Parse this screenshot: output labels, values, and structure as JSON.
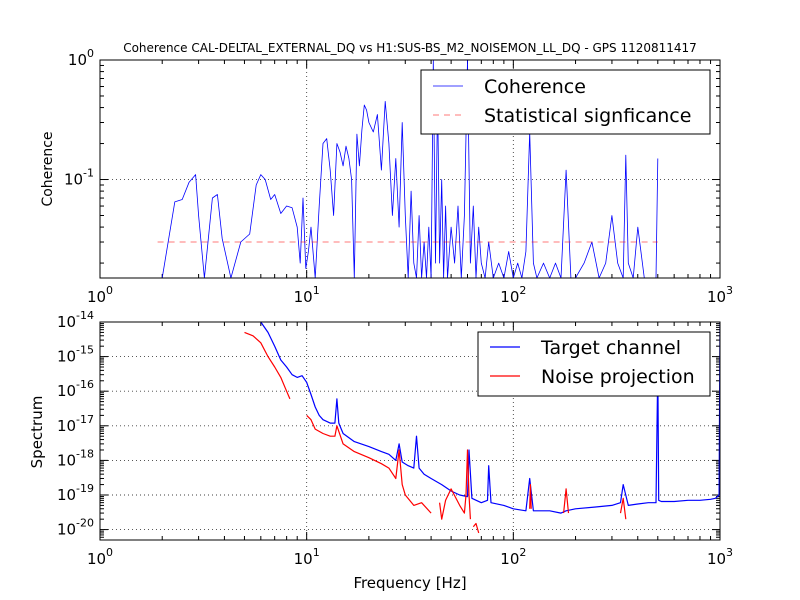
{
  "chart_data": [
    {
      "type": "line",
      "title": "Coherence CAL-DELTAL_EXTERNAL_DQ vs H1:SUS-BS_M2_NOISEMON_LL_DQ - GPS 1120811417",
      "xlabel": "",
      "ylabel": "Coherence",
      "xscale": "log",
      "yscale": "log",
      "xlim": [
        1,
        1000
      ],
      "ylim": [
        0.015,
        1
      ],
      "xticks": [
        {
          "value": 1,
          "base": "10",
          "exp": "0"
        },
        {
          "value": 10,
          "base": "10",
          "exp": "1"
        },
        {
          "value": 100,
          "base": "10",
          "exp": "2"
        },
        {
          "value": 1000,
          "base": "10",
          "exp": "3"
        }
      ],
      "yticks": [
        {
          "value": 0.1,
          "base": "10",
          "exp": "-1"
        },
        {
          "value": 1,
          "base": "10",
          "exp": "0"
        }
      ],
      "grid": true,
      "legend": "top-right",
      "series": [
        {
          "name": "Coherence",
          "color": "#0000ff",
          "style": "solid",
          "x": [
            2,
            2.3,
            2.5,
            2.7,
            2.9,
            3.0,
            3.2,
            3.5,
            3.7,
            3.9,
            4.3,
            4.8,
            5.3,
            5.7,
            6.0,
            6.3,
            6.7,
            7.0,
            7.5,
            8.0,
            8.5,
            9.0,
            9.3,
            9.6,
            9.9,
            10.2,
            10.5,
            11.0,
            11.5,
            12.0,
            12.5,
            13.0,
            13.5,
            14.0,
            14.5,
            15.0,
            15.5,
            16.0,
            16.5,
            17.0,
            17.5,
            18.0,
            18.5,
            19.0,
            19.5,
            20.0,
            21.0,
            22.0,
            23.0,
            24.0,
            25.0,
            26.0,
            27.0,
            28.0,
            29.0,
            30.0,
            31.0,
            32.0,
            33.0,
            34.0,
            35.0,
            36.0,
            37.0,
            38.0,
            39.0,
            40.0,
            41.0,
            42.0,
            43.0,
            44.0,
            45.0,
            46.0,
            47.0,
            48.0,
            50.0,
            52.0,
            54.0,
            56.0,
            58.0,
            60.0,
            62.0,
            64.0,
            66.0,
            68.0,
            70.0,
            73.0,
            76.0,
            80.0,
            85.0,
            90.0,
            95.0,
            100.0,
            105.0,
            110.0,
            115.0,
            120.0,
            125.0,
            130.0,
            140.0,
            150.0,
            160.0,
            170.0,
            180.0,
            190.0,
            200.0,
            220.0,
            240.0,
            260.0,
            280.0,
            300.0,
            320.0,
            340.0,
            350.0,
            360.0,
            380.0,
            400.0,
            430.0,
            460.0,
            490.0,
            500.0
          ],
          "values": [
            0.015,
            0.065,
            0.068,
            0.095,
            0.11,
            0.05,
            0.015,
            0.07,
            0.075,
            0.032,
            0.015,
            0.03,
            0.035,
            0.09,
            0.11,
            0.1,
            0.068,
            0.075,
            0.052,
            0.06,
            0.058,
            0.04,
            0.02,
            0.07,
            0.018,
            0.025,
            0.04,
            0.015,
            0.06,
            0.2,
            0.22,
            0.12,
            0.05,
            0.2,
            0.17,
            0.13,
            0.19,
            0.15,
            0.1,
            0.015,
            0.24,
            0.13,
            0.26,
            0.42,
            0.38,
            0.3,
            0.25,
            0.35,
            0.12,
            0.45,
            0.2,
            0.05,
            0.15,
            0.04,
            0.3,
            0.05,
            0.015,
            0.08,
            0.02,
            0.015,
            0.05,
            0.015,
            0.03,
            0.015,
            0.04,
            0.015,
            1.0,
            0.02,
            0.5,
            0.02,
            0.1,
            0.015,
            0.06,
            0.015,
            0.04,
            0.02,
            0.06,
            0.015,
            0.05,
            1.0,
            0.02,
            0.06,
            0.015,
            0.04,
            0.02,
            0.015,
            0.03,
            0.015,
            0.02,
            0.015,
            0.025,
            0.015,
            0.02,
            0.015,
            0.025,
            0.25,
            0.02,
            0.015,
            0.02,
            0.015,
            0.02,
            0.015,
            0.12,
            0.015,
            0.015,
            0.02,
            0.03,
            0.015,
            0.02,
            0.05,
            0.02,
            0.015,
            0.16,
            0.02,
            0.015,
            0.04,
            0.015,
            0.015,
            0.015,
            0.15
          ]
        },
        {
          "name": "Statistical signficance",
          "color": "#ff0000",
          "style": "dashed",
          "x": [
            1.9,
            500
          ],
          "values": [
            0.03,
            0.03
          ]
        }
      ]
    },
    {
      "type": "line",
      "title": "",
      "xlabel": "Frequency [Hz]",
      "ylabel": "Spectrum",
      "xscale": "log",
      "yscale": "log",
      "xlim": [
        1,
        1000
      ],
      "ylim": [
        5e-21,
        1e-14
      ],
      "xticks": [
        {
          "value": 1,
          "base": "10",
          "exp": "0"
        },
        {
          "value": 10,
          "base": "10",
          "exp": "1"
        },
        {
          "value": 100,
          "base": "10",
          "exp": "2"
        },
        {
          "value": 1000,
          "base": "10",
          "exp": "3"
        }
      ],
      "yticks": [
        {
          "value": 1e-20,
          "base": "10",
          "exp": "-20"
        },
        {
          "value": 1e-19,
          "base": "10",
          "exp": "-19"
        },
        {
          "value": 1e-18,
          "base": "10",
          "exp": "-18"
        },
        {
          "value": 1e-17,
          "base": "10",
          "exp": "-17"
        },
        {
          "value": 1e-16,
          "base": "10",
          "exp": "-16"
        },
        {
          "value": 1e-15,
          "base": "10",
          "exp": "-15"
        },
        {
          "value": 1e-14,
          "base": "10",
          "exp": "-14"
        }
      ],
      "grid": true,
      "legend": "top-right",
      "series": [
        {
          "name": "Target channel",
          "color": "#0000ff",
          "style": "solid",
          "x": [
            6.0,
            6.5,
            7.0,
            7.5,
            8.0,
            8.5,
            9.0,
            9.5,
            10.0,
            10.5,
            11.0,
            11.5,
            12.0,
            13.0,
            13.7,
            14.0,
            14.3,
            15.0,
            17.0,
            20.0,
            23.0,
            25.0,
            27.0,
            28.0,
            29.0,
            31.0,
            33.0,
            34.0,
            35.0,
            37.0,
            40.0,
            45.0,
            50.0,
            55.0,
            60.0,
            61.0,
            63.0,
            70.0,
            75.0,
            76.0,
            78.0,
            90.0,
            100.0,
            115.0,
            120.0,
            125.0,
            150.0,
            170.0,
            180.0,
            200.0,
            250.0,
            300.0,
            330.0,
            340.0,
            360.0,
            400.0,
            450.0,
            490.0,
            500.0,
            505.0,
            520.0,
            600.0,
            700.0,
            800.0,
            900.0,
            950.0,
            990.0,
            1000.0
          ],
          "values": [
            1e-14,
            5e-15,
            2e-15,
            8e-16,
            5e-16,
            3e-16,
            2.5e-16,
            2.8e-16,
            1.8e-16,
            8e-17,
            3.5e-17,
            2e-17,
            1.5e-17,
            1.2e-17,
            1.2e-17,
            6e-17,
            1.2e-17,
            6e-18,
            3.5e-18,
            2.5e-18,
            1.8e-18,
            1.5e-18,
            1e-18,
            3e-18,
            9e-19,
            7e-19,
            6e-19,
            5e-18,
            6e-19,
            4e-19,
            3e-19,
            2e-19,
            1.3e-19,
            1e-19,
            9e-20,
            2e-18,
            8e-20,
            6e-20,
            7e-20,
            7e-19,
            6e-20,
            5e-20,
            4e-20,
            3.5e-20,
            3e-19,
            3.5e-20,
            3.5e-20,
            3e-20,
            3.5e-20,
            4e-20,
            4.5e-20,
            5e-20,
            6e-20,
            2e-19,
            5e-20,
            5.5e-20,
            6e-20,
            6e-20,
            5e-16,
            7e-20,
            6.5e-20,
            6.5e-20,
            7e-20,
            7e-20,
            7.5e-20,
            8e-20,
            1e-19,
            1e-14
          ]
        },
        {
          "name": "Noise projection",
          "color": "#ff0000",
          "style": "solid",
          "x": [
            5.0,
            5.5,
            6.0,
            6.5,
            7.0,
            7.5,
            8.0,
            8.3,
            null,
            10.0,
            10.5,
            11.0,
            12.0,
            13.0,
            13.7,
            14.0,
            15.0,
            17.0,
            20.0,
            23.0,
            25.0,
            27.0,
            28.0,
            29.0,
            30.0,
            33.0,
            36.0,
            40.0,
            null,
            44.0,
            45.0,
            47.0,
            50.0,
            55.0,
            58.0,
            59.0,
            60.0,
            61.0,
            62.0,
            null,
            64.0,
            66.0,
            68.0,
            null,
            120.0,
            121.0,
            122.0,
            null,
            175.0,
            180.0,
            185.0,
            null,
            330.0,
            340.0,
            350.0
          ],
          "values": [
            5e-15,
            4e-15,
            2.5e-15,
            1e-15,
            5e-16,
            2.5e-16,
            1e-16,
            6e-17,
            null,
            2e-17,
            1.5e-17,
            8e-18,
            6e-18,
            5e-18,
            5e-18,
            1e-17,
            3e-18,
            1.8e-18,
            1.2e-18,
            8e-19,
            6e-19,
            3e-19,
            2e-18,
            2e-19,
            1e-19,
            5e-20,
            6e-20,
            3e-20,
            null,
            6e-20,
            2e-20,
            7e-20,
            1.5e-19,
            5e-20,
            3e-20,
            1e-19,
            2e-18,
            1e-19,
            2e-20,
            null,
            1.2e-20,
            1.5e-20,
            8e-21,
            null,
            4e-20,
            2e-19,
            4e-20,
            null,
            3e-20,
            1.5e-19,
            3e-20,
            null,
            3e-20,
            8e-20,
            2e-20
          ]
        }
      ]
    }
  ]
}
